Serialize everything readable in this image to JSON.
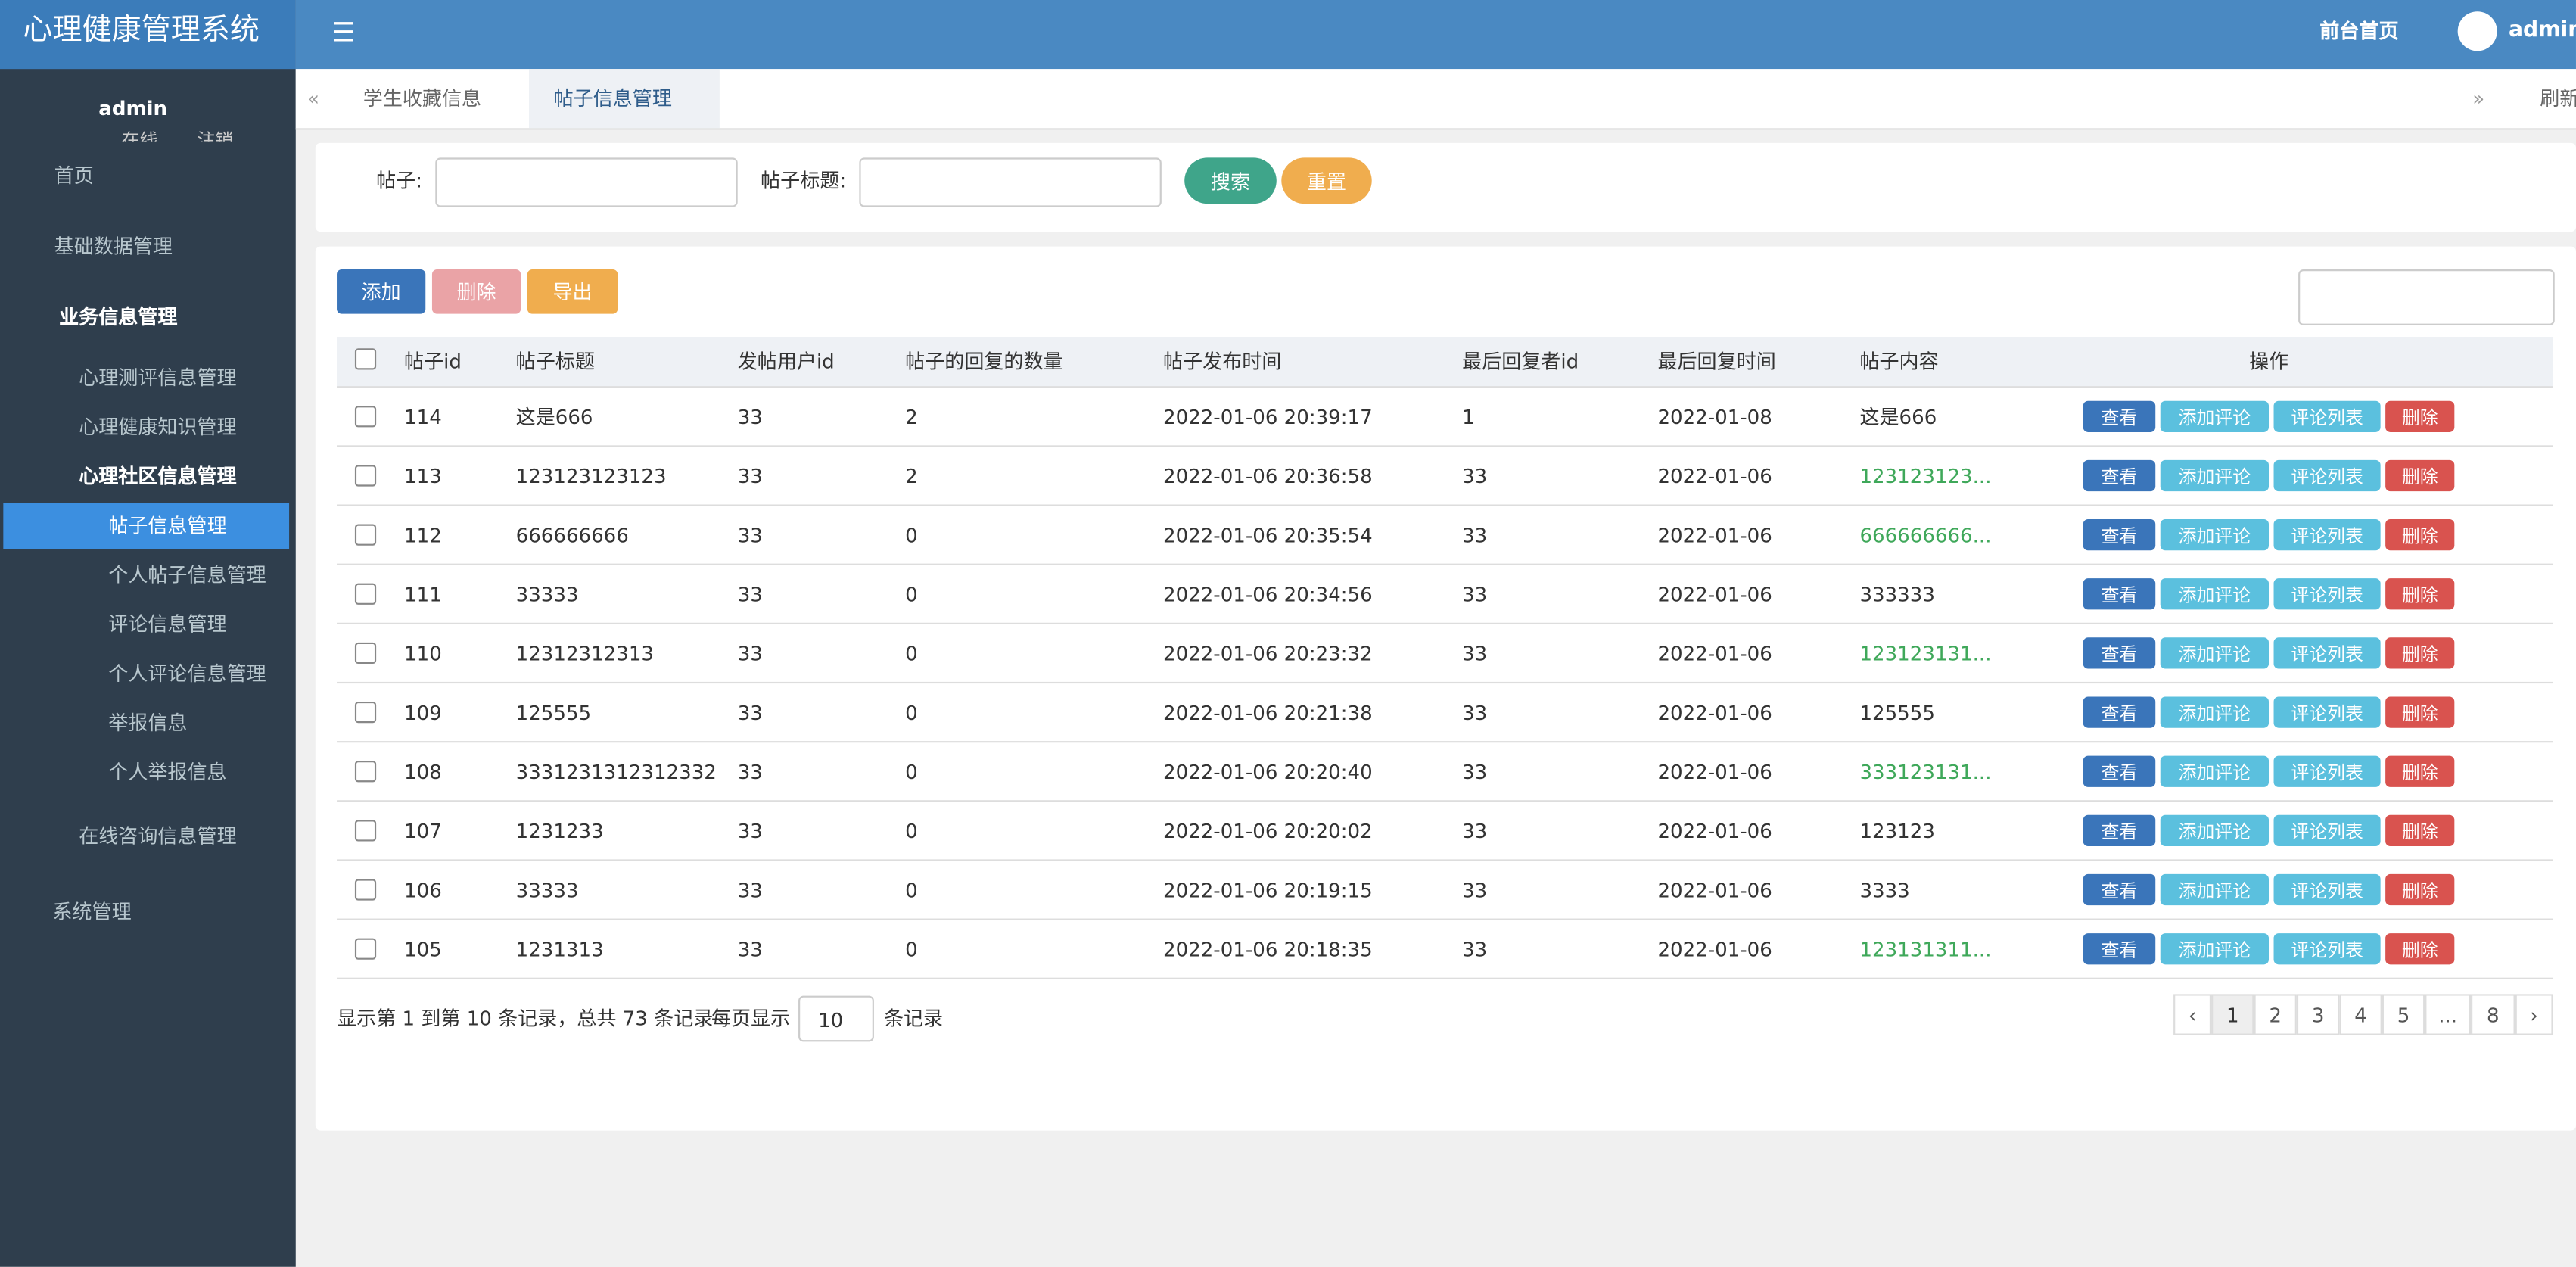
{
  "header": {
    "title": "心理健康管理系统",
    "home_link": "前台首页",
    "user": "admin"
  },
  "sidebar": {
    "user": "admin",
    "status": "在线",
    "logout": "注销",
    "menu": [
      {
        "label": "首页"
      },
      {
        "label": "基础数据管理"
      },
      {
        "label": "业务信息管理",
        "children": [
          {
            "label": "心理测评信息管理"
          },
          {
            "label": "心理健康知识管理"
          },
          {
            "label": "心理社区信息管理",
            "children": [
              "帖子信息管理",
              "个人帖子信息管理",
              "评论信息管理",
              "个人评论信息管理",
              "举报信息",
              "个人举报信息"
            ]
          },
          {
            "label": "在线咨询信息管理"
          }
        ]
      },
      {
        "label": "系统管理"
      }
    ]
  },
  "tabs": [
    "学生收藏信息",
    "帖子信息管理"
  ],
  "refresh": "刷新",
  "search": {
    "post_label": "帖子:",
    "title_label": "帖子标题:",
    "search_button": "搜索",
    "reset_button": "重置"
  },
  "toolbar": {
    "add": "添加",
    "delete": "删除",
    "export": "导出"
  },
  "table": {
    "columns": [
      "帖子id",
      "帖子标题",
      "发帖用户id",
      "帖子的回复的数量",
      "帖子发布时间",
      "最后回复者id",
      "最后回复时间",
      "帖子内容",
      "操作"
    ],
    "rows": [
      [
        114,
        "这是666",
        33,
        2,
        "2022-01-06 20:39:17",
        1,
        "2022-01-08",
        "这是666"
      ],
      [
        113,
        "123123123123",
        33,
        2,
        "2022-01-06 20:36:58",
        33,
        "2022-01-06",
        "123123123..."
      ],
      [
        112,
        "666666666",
        33,
        0,
        "2022-01-06 20:35:54",
        33,
        "2022-01-06",
        "666666666..."
      ],
      [
        111,
        "33333",
        33,
        0,
        "2022-01-06 20:34:56",
        33,
        "2022-01-06",
        "333333"
      ],
      [
        110,
        "12312312313",
        33,
        0,
        "2022-01-06 20:23:32",
        33,
        "2022-01-06",
        "123123131..."
      ],
      [
        109,
        "125555",
        33,
        0,
        "2022-01-06 20:21:38",
        33,
        "2022-01-06",
        "125555"
      ],
      [
        108,
        "3331231312312332",
        33,
        0,
        "2022-01-06 20:20:40",
        33,
        "2022-01-06",
        "333123131..."
      ],
      [
        107,
        "1231233",
        33,
        0,
        "2022-01-06 20:20:02",
        33,
        "2022-01-06",
        "123123"
      ],
      [
        106,
        "33333",
        33,
        0,
        "2022-01-06 20:19:15",
        33,
        "2022-01-06",
        "3333"
      ],
      [
        105,
        "1231313",
        33,
        0,
        "2022-01-06 20:18:35",
        33,
        "2022-01-06",
        "123131311..."
      ]
    ],
    "row_actions": [
      "查看",
      "添加评论",
      "评论列表",
      "删除"
    ]
  },
  "pagination": {
    "summary": "显示第 1 到第 10 条记录，总共 73 条记录",
    "per_page_label": "每页显示",
    "per_page": 10,
    "per_page_suffix": "条记录",
    "pages": [
      "‹",
      "1",
      "2",
      "3",
      "4",
      "5",
      "...",
      "8",
      "›"
    ]
  }
}
